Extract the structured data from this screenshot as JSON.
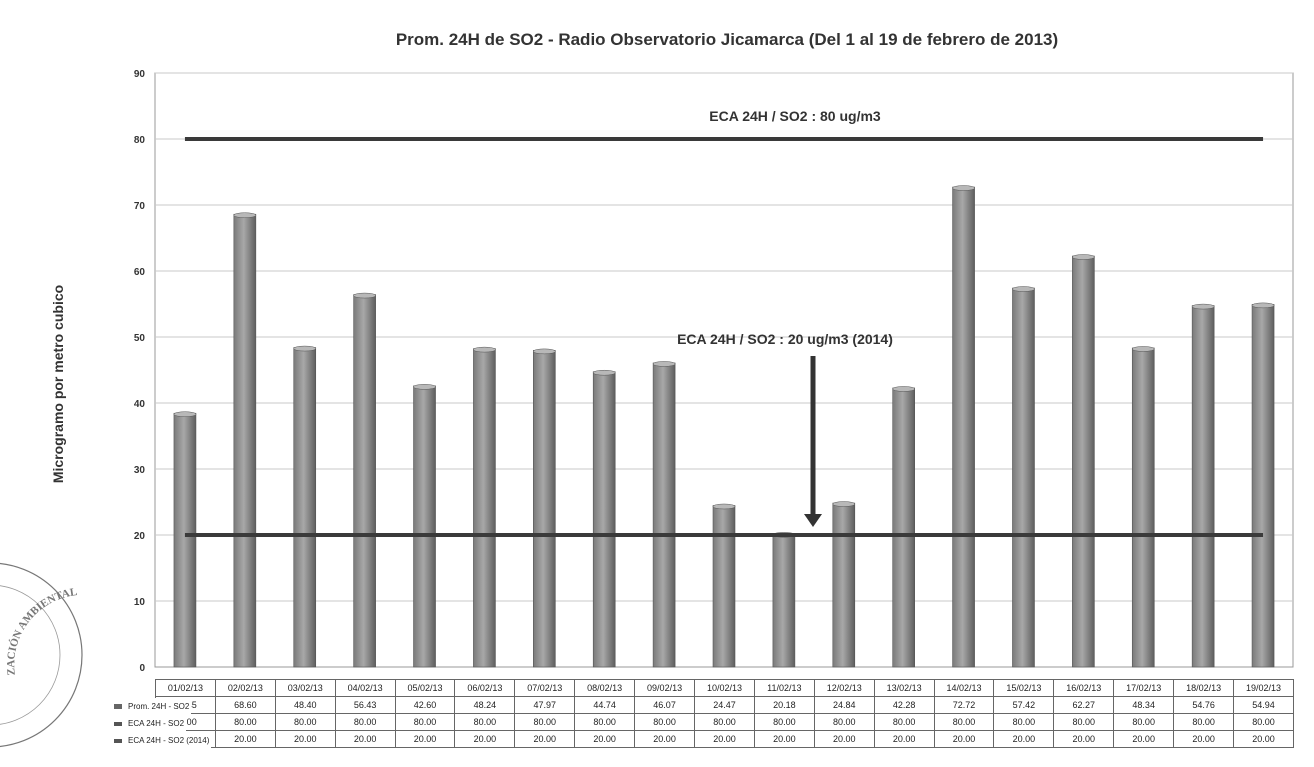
{
  "chart_data": {
    "type": "bar",
    "title": "Prom. 24H de SO2 - Radio Observatorio Jicamarca (Del 1 al 19 de febrero de 2013)",
    "ylabel": "Microgramo por metro cubico",
    "ylim": [
      0,
      90
    ],
    "yticks": [
      0,
      10,
      20,
      30,
      40,
      50,
      60,
      70,
      80,
      90
    ],
    "grid": true,
    "categories": [
      "01/02/13",
      "02/02/13",
      "03/02/13",
      "04/02/13",
      "05/02/13",
      "06/02/13",
      "07/02/13",
      "08/02/13",
      "09/02/13",
      "10/02/13",
      "11/02/13",
      "12/02/13",
      "13/02/13",
      "14/02/13",
      "15/02/13",
      "16/02/13",
      "17/02/13",
      "18/02/13",
      "19/02/13"
    ],
    "series": [
      {
        "name": "Prom. 24H - SO2",
        "kind": "bar",
        "values": [
          38.45,
          68.6,
          48.4,
          56.43,
          42.6,
          48.24,
          47.97,
          44.74,
          46.07,
          24.47,
          20.18,
          24.84,
          42.28,
          72.72,
          57.42,
          62.27,
          48.34,
          54.76,
          54.94
        ],
        "labels": [
          "38.45",
          "68.60",
          "48.40",
          "56.43",
          "42.60",
          "48.24",
          "47.97",
          "44.74",
          "46.07",
          "24.47",
          "20.18",
          "24.84",
          "42.28",
          "72.72",
          "57.42",
          "62.27",
          "48.34",
          "54.76",
          "54.94"
        ]
      },
      {
        "name": "ECA 24H - SO2",
        "kind": "line",
        "values": [
          80,
          80,
          80,
          80,
          80,
          80,
          80,
          80,
          80,
          80,
          80,
          80,
          80,
          80,
          80,
          80,
          80,
          80,
          80
        ],
        "labels": [
          "80.00",
          "80.00",
          "80.00",
          "80.00",
          "80.00",
          "80.00",
          "80.00",
          "80.00",
          "80.00",
          "80.00",
          "80.00",
          "80.00",
          "80.00",
          "80.00",
          "80.00",
          "80.00",
          "80.00",
          "80.00",
          "80.00"
        ]
      },
      {
        "name": "ECA 24H - SO2 (2014)",
        "kind": "line",
        "values": [
          20,
          20,
          20,
          20,
          20,
          20,
          20,
          20,
          20,
          20,
          20,
          20,
          20,
          20,
          20,
          20,
          20,
          20,
          20
        ],
        "labels": [
          "20.00",
          "20.00",
          "20.00",
          "20.00",
          "20.00",
          "20.00",
          "20.00",
          "20.00",
          "20.00",
          "20.00",
          "20.00",
          "20.00",
          "20.00",
          "20.00",
          "20.00",
          "20.00",
          "20.00",
          "20.00",
          "20.00"
        ]
      }
    ],
    "annotations": [
      {
        "text": "ECA 24H / SO2 : 80 ug/m3"
      },
      {
        "text": "ECA 24H / SO2 : 20 ug/m3 (2014)"
      }
    ],
    "colors": {
      "bar": "#7a7a7a",
      "bar_highlight": "#a8a8a8",
      "line": "#3a3a3a",
      "grid": "#c8c8c8"
    }
  },
  "stamp": {
    "text": "...LIZACIÓN AMBIENTAL..."
  }
}
